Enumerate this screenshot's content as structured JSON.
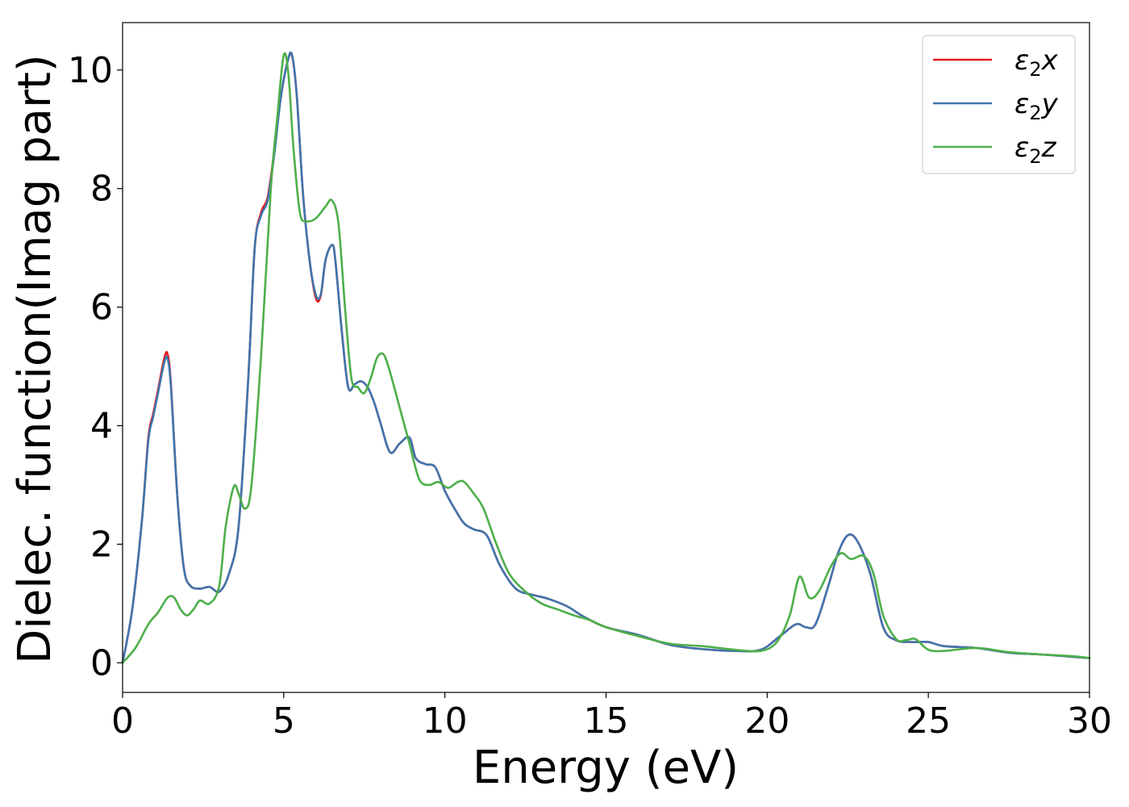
{
  "chart_data": {
    "type": "line",
    "xlabel": "Energy (eV)",
    "ylabel": "Dielec. function(Imag part)",
    "xlim": [
      0,
      30
    ],
    "ylim": [
      -0.5,
      10.8
    ],
    "xticks": [
      0,
      5,
      10,
      15,
      20,
      25,
      30
    ],
    "yticks": [
      0,
      2,
      4,
      6,
      8,
      10
    ],
    "grid": false,
    "legend_position": "top-right",
    "series": [
      {
        "name": "ε2x",
        "legend_base": "ε",
        "legend_sub": "2",
        "legend_var": "x",
        "color": "#e41a1c",
        "x": [
          0,
          0.3,
          0.6,
          0.8,
          0.95,
          1.1,
          1.3,
          1.4,
          1.5,
          1.7,
          1.9,
          2.1,
          2.4,
          2.7,
          3.0,
          3.3,
          3.6,
          3.9,
          4.1,
          4.3,
          4.5,
          4.7,
          4.9,
          5.1,
          5.25,
          5.4,
          5.6,
          5.8,
          6.0,
          6.15,
          6.3,
          6.5,
          6.6,
          6.8,
          7.0,
          7.2,
          7.4,
          7.6,
          7.8,
          8.0,
          8.3,
          8.6,
          8.9,
          9.1,
          9.4,
          9.7,
          10.0,
          10.3,
          10.6,
          10.9,
          11.3,
          11.7,
          12.2,
          12.7,
          13.2,
          13.8,
          14.3,
          15.0,
          16.0,
          17.0,
          18.0,
          19.0,
          19.8,
          20.4,
          20.9,
          21.2,
          21.5,
          21.9,
          22.2,
          22.5,
          22.8,
          23.2,
          23.6,
          24.0,
          24.5,
          25.0,
          25.5,
          26.5,
          27.5,
          28.5,
          29.5,
          30.0
        ],
        "y": [
          0.0,
          0.9,
          2.4,
          3.8,
          4.2,
          4.6,
          5.15,
          5.2,
          4.7,
          2.8,
          1.6,
          1.3,
          1.25,
          1.28,
          1.2,
          1.5,
          2.3,
          4.8,
          7.0,
          7.6,
          7.85,
          8.6,
          9.5,
          10.1,
          10.25,
          9.6,
          7.9,
          6.8,
          6.15,
          6.2,
          6.8,
          7.05,
          6.8,
          5.6,
          4.65,
          4.7,
          4.75,
          4.65,
          4.4,
          4.05,
          3.55,
          3.7,
          3.8,
          3.45,
          3.35,
          3.3,
          2.9,
          2.6,
          2.35,
          2.25,
          2.15,
          1.65,
          1.25,
          1.15,
          1.08,
          0.95,
          0.78,
          0.6,
          0.47,
          0.3,
          0.23,
          0.2,
          0.22,
          0.45,
          0.65,
          0.6,
          0.65,
          1.3,
          1.85,
          2.15,
          2.05,
          1.5,
          0.6,
          0.38,
          0.35,
          0.35,
          0.28,
          0.25,
          0.17,
          0.14,
          0.1,
          0.08
        ]
      },
      {
        "name": "ε2y",
        "legend_base": "ε",
        "legend_sub": "2",
        "legend_var": "y",
        "color": "#3f75ae",
        "x": [
          0,
          0.3,
          0.6,
          0.8,
          0.95,
          1.1,
          1.3,
          1.4,
          1.5,
          1.7,
          1.9,
          2.1,
          2.4,
          2.7,
          3.0,
          3.3,
          3.6,
          3.9,
          4.1,
          4.3,
          4.5,
          4.7,
          4.9,
          5.1,
          5.25,
          5.4,
          5.6,
          5.8,
          6.0,
          6.15,
          6.3,
          6.5,
          6.6,
          6.8,
          7.0,
          7.2,
          7.4,
          7.6,
          7.8,
          8.0,
          8.3,
          8.6,
          8.9,
          9.1,
          9.4,
          9.7,
          10.0,
          10.3,
          10.6,
          10.9,
          11.3,
          11.7,
          12.2,
          12.7,
          13.2,
          13.8,
          14.3,
          15.0,
          16.0,
          17.0,
          18.0,
          19.0,
          19.8,
          20.4,
          20.9,
          21.2,
          21.5,
          21.9,
          22.2,
          22.5,
          22.8,
          23.2,
          23.6,
          24.0,
          24.5,
          25.0,
          25.5,
          26.5,
          27.5,
          28.5,
          29.5,
          30.0
        ],
        "y": [
          0.0,
          0.9,
          2.4,
          3.75,
          4.15,
          4.55,
          5.08,
          5.12,
          4.65,
          2.8,
          1.6,
          1.3,
          1.25,
          1.28,
          1.2,
          1.5,
          2.3,
          4.8,
          7.0,
          7.55,
          7.8,
          8.55,
          9.5,
          10.1,
          10.27,
          9.6,
          7.9,
          6.8,
          6.2,
          6.22,
          6.8,
          7.05,
          6.8,
          5.6,
          4.65,
          4.7,
          4.75,
          4.65,
          4.4,
          4.05,
          3.55,
          3.7,
          3.8,
          3.45,
          3.35,
          3.3,
          2.9,
          2.6,
          2.35,
          2.25,
          2.15,
          1.65,
          1.25,
          1.15,
          1.08,
          0.95,
          0.78,
          0.6,
          0.47,
          0.3,
          0.23,
          0.2,
          0.22,
          0.45,
          0.65,
          0.6,
          0.65,
          1.3,
          1.85,
          2.15,
          2.05,
          1.5,
          0.6,
          0.38,
          0.35,
          0.35,
          0.28,
          0.25,
          0.17,
          0.14,
          0.1,
          0.08
        ]
      },
      {
        "name": "ε2z",
        "legend_base": "ε",
        "legend_sub": "2",
        "legend_var": "z",
        "color": "#4daf4a",
        "x": [
          0,
          0.4,
          0.8,
          1.1,
          1.4,
          1.6,
          1.8,
          2.0,
          2.2,
          2.4,
          2.7,
          3.0,
          3.2,
          3.45,
          3.6,
          3.8,
          4.0,
          4.3,
          4.6,
          4.8,
          5.0,
          5.15,
          5.3,
          5.5,
          5.7,
          6.0,
          6.3,
          6.5,
          6.7,
          6.9,
          7.1,
          7.3,
          7.5,
          7.7,
          7.9,
          8.1,
          8.3,
          8.6,
          8.9,
          9.2,
          9.5,
          9.8,
          10.1,
          10.4,
          10.6,
          10.9,
          11.2,
          11.6,
          12.0,
          12.5,
          13.0,
          13.5,
          14.0,
          14.5,
          15.0,
          16.0,
          17.0,
          18.0,
          19.0,
          19.8,
          20.3,
          20.7,
          21.0,
          21.3,
          21.6,
          22.0,
          22.3,
          22.6,
          23.0,
          23.3,
          23.6,
          24.0,
          24.3,
          24.6,
          25.0,
          25.5,
          26.5,
          27.5,
          28.5,
          29.5,
          30.0
        ],
        "y": [
          0.0,
          0.25,
          0.65,
          0.85,
          1.1,
          1.1,
          0.9,
          0.8,
          0.9,
          1.05,
          1.0,
          1.3,
          2.3,
          2.97,
          2.85,
          2.6,
          3.0,
          5.2,
          8.0,
          9.2,
          10.25,
          9.9,
          8.7,
          7.6,
          7.45,
          7.5,
          7.7,
          7.8,
          7.4,
          6.0,
          4.8,
          4.65,
          4.55,
          4.8,
          5.15,
          5.2,
          4.9,
          4.3,
          3.7,
          3.1,
          3.0,
          3.05,
          2.95,
          3.05,
          3.05,
          2.85,
          2.6,
          2.0,
          1.5,
          1.2,
          1.0,
          0.9,
          0.8,
          0.72,
          0.6,
          0.45,
          0.32,
          0.28,
          0.22,
          0.2,
          0.35,
          0.8,
          1.45,
          1.1,
          1.2,
          1.65,
          1.85,
          1.75,
          1.8,
          1.5,
          0.8,
          0.4,
          0.38,
          0.4,
          0.22,
          0.2,
          0.25,
          0.18,
          0.14,
          0.11,
          0.08
        ]
      }
    ]
  }
}
